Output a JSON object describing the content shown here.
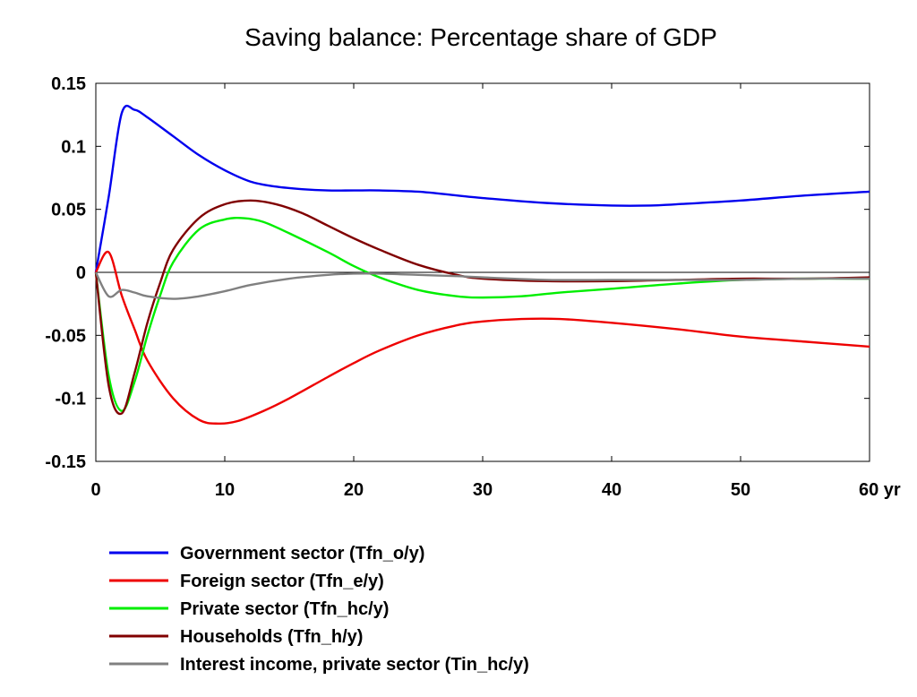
{
  "chart_data": {
    "type": "line",
    "title": "Saving balance: Percentage share of GDP",
    "xlabel": "",
    "ylabel": "",
    "x_unit_label": "yr",
    "xlim": [
      0,
      60
    ],
    "ylim": [
      -0.15,
      0.15
    ],
    "x_ticks": [
      0,
      10,
      20,
      30,
      40,
      50,
      60
    ],
    "x_tick_labels": [
      "0",
      "10",
      "20",
      "30",
      "40",
      "50",
      "60 yr"
    ],
    "y_ticks": [
      0.15,
      0.1,
      0.05,
      0,
      -0.05,
      -0.1,
      -0.15
    ],
    "y_tick_labels": [
      "0.15",
      "0.1",
      "0.05",
      "0",
      "-0.05",
      "-0.1",
      "-0.15"
    ],
    "zero_line": true,
    "grid": false,
    "legend_position": "bottom",
    "series": [
      {
        "name": "Government sector (Tfn_o/y)",
        "color": "#0000ee",
        "points": [
          [
            0,
            0
          ],
          [
            1,
            0.06
          ],
          [
            2,
            0.126
          ],
          [
            3,
            0.129
          ],
          [
            4,
            0.123
          ],
          [
            6,
            0.108
          ],
          [
            8,
            0.093
          ],
          [
            10,
            0.081
          ],
          [
            12,
            0.072
          ],
          [
            14,
            0.068
          ],
          [
            16,
            0.066
          ],
          [
            18,
            0.065
          ],
          [
            20,
            0.065
          ],
          [
            22,
            0.065
          ],
          [
            25,
            0.064
          ],
          [
            28,
            0.061
          ],
          [
            30,
            0.059
          ],
          [
            35,
            0.055
          ],
          [
            40,
            0.053
          ],
          [
            43,
            0.053
          ],
          [
            45,
            0.054
          ],
          [
            50,
            0.057
          ],
          [
            55,
            0.061
          ],
          [
            60,
            0.064
          ]
        ]
      },
      {
        "name": "Foreign sector (Tfn_e/y)",
        "color": "#ee0000",
        "points": [
          [
            0,
            0
          ],
          [
            1,
            0.016
          ],
          [
            2,
            -0.018
          ],
          [
            3,
            -0.045
          ],
          [
            4,
            -0.07
          ],
          [
            6,
            -0.1
          ],
          [
            8,
            -0.117
          ],
          [
            9.5,
            -0.12
          ],
          [
            11,
            -0.118
          ],
          [
            13,
            -0.11
          ],
          [
            15,
            -0.1
          ],
          [
            18,
            -0.083
          ],
          [
            20,
            -0.072
          ],
          [
            22,
            -0.062
          ],
          [
            25,
            -0.05
          ],
          [
            28,
            -0.042
          ],
          [
            30,
            -0.039
          ],
          [
            33,
            -0.037
          ],
          [
            36,
            -0.037
          ],
          [
            40,
            -0.04
          ],
          [
            45,
            -0.045
          ],
          [
            50,
            -0.051
          ],
          [
            55,
            -0.055
          ],
          [
            60,
            -0.059
          ]
        ]
      },
      {
        "name": "Private sector (Tfn_hc/y)",
        "color": "#00ee00",
        "points": [
          [
            0,
            0
          ],
          [
            1,
            -0.082
          ],
          [
            2,
            -0.11
          ],
          [
            3,
            -0.087
          ],
          [
            4,
            -0.05
          ],
          [
            5,
            -0.018
          ],
          [
            6,
            0.008
          ],
          [
            8,
            0.034
          ],
          [
            10,
            0.042
          ],
          [
            11.5,
            0.043
          ],
          [
            13,
            0.04
          ],
          [
            15,
            0.031
          ],
          [
            18,
            0.016
          ],
          [
            20,
            0.005
          ],
          [
            22,
            -0.004
          ],
          [
            25,
            -0.014
          ],
          [
            28,
            -0.019
          ],
          [
            30,
            -0.02
          ],
          [
            33,
            -0.019
          ],
          [
            36,
            -0.016
          ],
          [
            40,
            -0.013
          ],
          [
            45,
            -0.009
          ],
          [
            50,
            -0.006
          ],
          [
            55,
            -0.005
          ],
          [
            60,
            -0.005
          ]
        ]
      },
      {
        "name": "Households (Tfn_h/y)",
        "color": "#800000",
        "points": [
          [
            0,
            0
          ],
          [
            1,
            -0.09
          ],
          [
            2,
            -0.112
          ],
          [
            3,
            -0.08
          ],
          [
            4,
            -0.04
          ],
          [
            5,
            -0.008
          ],
          [
            6,
            0.018
          ],
          [
            8,
            0.043
          ],
          [
            10,
            0.054
          ],
          [
            12,
            0.057
          ],
          [
            14,
            0.054
          ],
          [
            16,
            0.047
          ],
          [
            18,
            0.037
          ],
          [
            20,
            0.027
          ],
          [
            22,
            0.018
          ],
          [
            25,
            0.006
          ],
          [
            28,
            -0.002
          ],
          [
            30,
            -0.005
          ],
          [
            35,
            -0.007
          ],
          [
            40,
            -0.007
          ],
          [
            45,
            -0.006
          ],
          [
            50,
            -0.005
          ],
          [
            55,
            -0.005
          ],
          [
            60,
            -0.004
          ]
        ]
      },
      {
        "name": "Interest income, private sector (Tin_hc/y)",
        "color": "#808080",
        "points": [
          [
            0,
            0
          ],
          [
            1,
            -0.019
          ],
          [
            2,
            -0.014
          ],
          [
            3,
            -0.016
          ],
          [
            4,
            -0.019
          ],
          [
            6,
            -0.021
          ],
          [
            8,
            -0.019
          ],
          [
            10,
            -0.015
          ],
          [
            12,
            -0.01
          ],
          [
            15,
            -0.005
          ],
          [
            18,
            -0.002
          ],
          [
            20,
            -0.001
          ],
          [
            22,
            -0.001
          ],
          [
            25,
            -0.002
          ],
          [
            28,
            -0.003
          ],
          [
            30,
            -0.004
          ],
          [
            35,
            -0.006
          ],
          [
            40,
            -0.006
          ],
          [
            45,
            -0.006
          ],
          [
            50,
            -0.006
          ],
          [
            55,
            -0.005
          ],
          [
            60,
            -0.005
          ]
        ]
      }
    ]
  },
  "colors": {
    "axis": "#000000",
    "background": "#ffffff"
  }
}
